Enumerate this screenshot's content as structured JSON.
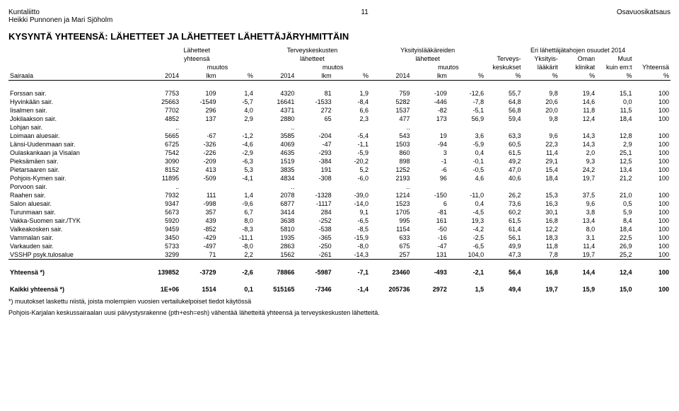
{
  "header": {
    "left_line1": "Kuntaliitto",
    "left_line2": "Heikki Punnonen ja Mari Sjöholm",
    "page_no": "11",
    "right": "Osavuosikatsaus"
  },
  "title": "KYSYNTÄ YHTEENSÄ: LÄHETTEET JA LÄHETTEET LÄHETTÄJÄRYHMITTÄIN",
  "col_headers": {
    "row1": [
      "",
      "Lähetteet",
      "",
      "",
      "Terveyskeskusten",
      "",
      "",
      "Yksityislääkäreiden",
      "",
      "",
      "Eri lähettäjätahojen osuudet 2014",
      "",
      "",
      "",
      ""
    ],
    "row2": [
      "",
      "yhteensä",
      "",
      "",
      "lähetteet",
      "",
      "",
      "lähetteet",
      "",
      "",
      "Terveys-",
      "Yksityis-",
      "Oman",
      "Muut",
      ""
    ],
    "row3": [
      "",
      "",
      "muutos",
      "",
      "",
      "muutos",
      "",
      "",
      "muutos",
      "",
      "keskukset",
      "lääkärit",
      "klinikat",
      "kuin em:t",
      "Yhteensä"
    ],
    "row4": [
      "Sairaala",
      "2014",
      "lkm",
      "%",
      "2014",
      "lkm",
      "%",
      "2014",
      "lkm",
      "%",
      "%",
      "%",
      "%",
      "%",
      "%"
    ]
  },
  "rows": [
    {
      "name": "Forssan sair.",
      "v": [
        "7753",
        "109",
        "1,4",
        "4320",
        "81",
        "1,9",
        "759",
        "-109",
        "-12,6",
        "55,7",
        "9,8",
        "19,4",
        "15,1",
        "100"
      ]
    },
    {
      "name": "Hyvinkään sair.",
      "v": [
        "25663",
        "-1549",
        "-5,7",
        "16641",
        "-1533",
        "-8,4",
        "5282",
        "-446",
        "-7,8",
        "64,8",
        "20,6",
        "14,6",
        "0,0",
        "100"
      ]
    },
    {
      "name": "Iisalmen sair.",
      "v": [
        "7702",
        "296",
        "4,0",
        "4371",
        "272",
        "6,6",
        "1537",
        "-82",
        "-5,1",
        "56,8",
        "20,0",
        "11,8",
        "11,5",
        "100"
      ]
    },
    {
      "name": "Jokilaakson sair.",
      "v": [
        "4852",
        "137",
        "2,9",
        "2880",
        "65",
        "2,3",
        "477",
        "173",
        "56,9",
        "59,4",
        "9,8",
        "12,4",
        "18,4",
        "100"
      ]
    },
    {
      "name": "Lohjan sair.",
      "v": [
        "..",
        "",
        "",
        "..",
        "",
        "",
        "..",
        "",
        "",
        "",
        "",
        "",
        "",
        ""
      ]
    },
    {
      "name": "Loimaan aluesair.",
      "v": [
        "5665",
        "-67",
        "-1,2",
        "3585",
        "-204",
        "-5,4",
        "543",
        "19",
        "3,6",
        "63,3",
        "9,6",
        "14,3",
        "12,8",
        "100"
      ]
    },
    {
      "name": "Länsi-Uudenmaan sair.",
      "v": [
        "6725",
        "-326",
        "-4,6",
        "4069",
        "-47",
        "-1,1",
        "1503",
        "-94",
        "-5,9",
        "60,5",
        "22,3",
        "14,3",
        "2,9",
        "100"
      ]
    },
    {
      "name": "Oulaskankaan ja Visalan",
      "v": [
        "7542",
        "-226",
        "-2,9",
        "4635",
        "-293",
        "-5,9",
        "860",
        "3",
        "0,4",
        "61,5",
        "11,4",
        "2,0",
        "25,1",
        "100"
      ]
    },
    {
      "name": "Pieksämäen sair.",
      "v": [
        "3090",
        "-209",
        "-6,3",
        "1519",
        "-384",
        "-20,2",
        "898",
        "-1",
        "-0,1",
        "49,2",
        "29,1",
        "9,3",
        "12,5",
        "100"
      ]
    },
    {
      "name": "Pietarsaaren sair.",
      "v": [
        "8152",
        "413",
        "5,3",
        "3835",
        "191",
        "5,2",
        "1252",
        "-6",
        "-0,5",
        "47,0",
        "15,4",
        "24,2",
        "13,4",
        "100"
      ]
    },
    {
      "name": "Pohjois-Kymen sair.",
      "v": [
        "11895",
        "-509",
        "-4,1",
        "4834",
        "-308",
        "-6,0",
        "2193",
        "96",
        "4,6",
        "40,6",
        "18,4",
        "19,7",
        "21,2",
        "100"
      ]
    },
    {
      "name": "Porvoon sair.",
      "v": [
        "..",
        "",
        "",
        "..",
        "",
        "",
        "..",
        "",
        "",
        "",
        "",
        "",
        "",
        ""
      ]
    },
    {
      "name": "Raahen sair.",
      "v": [
        "7932",
        "111",
        "1,4",
        "2078",
        "-1328",
        "-39,0",
        "1214",
        "-150",
        "-11,0",
        "26,2",
        "15,3",
        "37,5",
        "21,0",
        "100"
      ]
    },
    {
      "name": "Salon aluesair.",
      "v": [
        "9347",
        "-998",
        "-9,6",
        "6877",
        "-1117",
        "-14,0",
        "1523",
        "6",
        "0,4",
        "73,6",
        "16,3",
        "9,6",
        "0,5",
        "100"
      ]
    },
    {
      "name": "Turunmaan sair.",
      "v": [
        "5673",
        "357",
        "6,7",
        "3414",
        "284",
        "9,1",
        "1705",
        "-81",
        "-4,5",
        "60,2",
        "30,1",
        "3,8",
        "5,9",
        "100"
      ]
    },
    {
      "name": "Vakka-Suomen sair./TYK",
      "v": [
        "5920",
        "439",
        "8,0",
        "3638",
        "-252",
        "-6,5",
        "995",
        "161",
        "19,3",
        "61,5",
        "16,8",
        "13,4",
        "8,4",
        "100"
      ]
    },
    {
      "name": "Valkeakosken sair.",
      "v": [
        "9459",
        "-852",
        "-8,3",
        "5810",
        "-538",
        "-8,5",
        "1154",
        "-50",
        "-4,2",
        "61,4",
        "12,2",
        "8,0",
        "18,4",
        "100"
      ]
    },
    {
      "name": "Vammalan sair.",
      "v": [
        "3450",
        "-429",
        "-11,1",
        "1935",
        "-365",
        "-15,9",
        "633",
        "-16",
        "-2,5",
        "56,1",
        "18,3",
        "3,1",
        "22,5",
        "100"
      ]
    },
    {
      "name": "Varkauden sair.",
      "v": [
        "5733",
        "-497",
        "-8,0",
        "2863",
        "-250",
        "-8,0",
        "675",
        "-47",
        "-6,5",
        "49,9",
        "11,8",
        "11,4",
        "26,9",
        "100"
      ]
    },
    {
      "name": "VSSHP psyk.tulosalue",
      "v": [
        "3299",
        "71",
        "2,2",
        "1562",
        "-261",
        "-14,3",
        "257",
        "131",
        "104,0",
        "47,3",
        "7,8",
        "19,7",
        "25,2",
        "100"
      ]
    }
  ],
  "totals": [
    {
      "name": "Yhteensä *)",
      "v": [
        "139852",
        "-3729",
        "-2,6",
        "78866",
        "-5987",
        "-7,1",
        "23460",
        "-493",
        "-2,1",
        "56,4",
        "16,8",
        "14,4",
        "12,4",
        "100"
      ]
    },
    {
      "name": "Kaikki yhteensä *)",
      "v": [
        "1E+06",
        "1514",
        "0,1",
        "515165",
        "-7346",
        "-1,4",
        "205736",
        "2972",
        "1,5",
        "49,4",
        "19,7",
        "15,9",
        "15,0",
        "100"
      ]
    }
  ],
  "footnotes": [
    "*) muutokset laskettu niistä, joista molempien vuosien vertailukelpoiset tiedot käytössä",
    "Pohjois-Karjalan keskussairaalan uusi päivystysrakenne (pth+esh=esh) vähentää lähetteitä yhteensä ja terveyskeskusten lähetteitä."
  ]
}
